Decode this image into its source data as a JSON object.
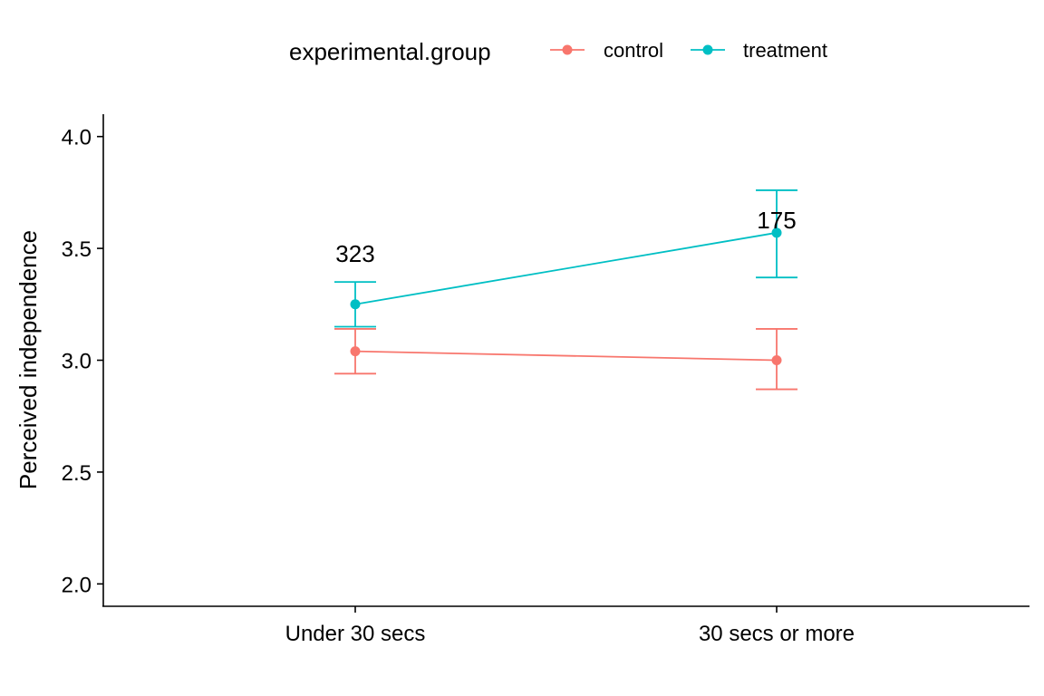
{
  "chart_data": {
    "type": "line",
    "title": "",
    "xlabel": "",
    "ylabel": "Perceived independence",
    "categories": [
      "Under 30 secs",
      "30 secs or more"
    ],
    "ylim": [
      1.9,
      4.1
    ],
    "yticks": [
      "2.0",
      "2.5",
      "3.0",
      "3.5",
      "4.0"
    ],
    "grid": false,
    "legend": {
      "title": "experimental.group",
      "position": "top"
    },
    "series": [
      {
        "name": "control",
        "color": "#F8766D",
        "values": [
          3.04,
          3.0
        ],
        "lower": [
          2.94,
          2.87
        ],
        "upper": [
          3.14,
          3.14
        ]
      },
      {
        "name": "treatment",
        "color": "#00BFC4",
        "values": [
          3.25,
          3.57
        ],
        "lower": [
          3.15,
          3.37
        ],
        "upper": [
          3.35,
          3.76
        ]
      }
    ],
    "annotations": [
      {
        "text": "323",
        "category": "Under 30 secs",
        "y": 3.44
      },
      {
        "text": "175",
        "category": "30 secs or more",
        "y": 3.59
      }
    ]
  }
}
